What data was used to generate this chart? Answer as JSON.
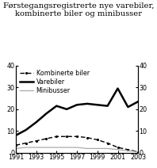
{
  "title_line1": "Førstegangsregistrerte nye varebiler,",
  "title_line2": "kombinerte biler og minibusser",
  "years": [
    1991,
    1992,
    1993,
    1994,
    1995,
    1996,
    1997,
    1998,
    1999,
    2000,
    2001,
    2002,
    2003
  ],
  "varebiler": [
    8.0,
    10.5,
    14.0,
    18.0,
    21.5,
    20.0,
    22.0,
    22.5,
    22.0,
    21.5,
    29.5,
    21.0,
    23.5
  ],
  "kombinerte": [
    3.5,
    4.5,
    5.5,
    6.5,
    7.5,
    7.5,
    7.5,
    7.0,
    6.0,
    4.5,
    2.5,
    1.5,
    0.5
  ],
  "minibusser": [
    2.0,
    2.5,
    2.5,
    2.5,
    2.5,
    2.5,
    2.5,
    2.0,
    2.0,
    2.0,
    1.5,
    1.0,
    0.5
  ],
  "ylim": [
    0,
    40
  ],
  "yticks": [
    0,
    10,
    20,
    30,
    40
  ],
  "xticks": [
    1991,
    1993,
    1995,
    1997,
    1999,
    2001,
    2003
  ],
  "legend_labels": [
    "Kombinerte biler",
    "Varebiler",
    "Minibusser"
  ],
  "varebiler_color": "#000000",
  "kombinerte_color": "#000000",
  "minibusser_color": "#aaaaaa",
  "background_color": "#ffffff",
  "title_fontsize": 7.2,
  "legend_fontsize": 5.8,
  "tick_fontsize": 5.8
}
